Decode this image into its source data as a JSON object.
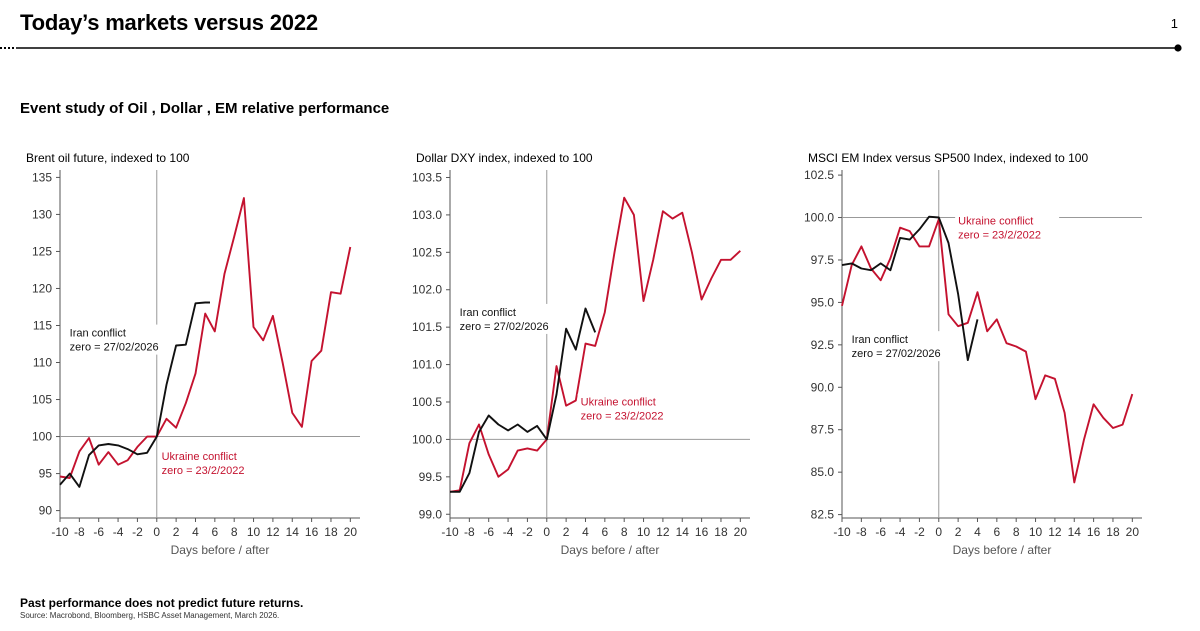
{
  "header": {
    "title": "Today’s markets versus 2022",
    "page_number": "1"
  },
  "subtitle": "Event study of Oil , Dollar , EM relative performance",
  "colors": {
    "iran": "#111111",
    "ukraine": "#c4122f",
    "ref_line": "#999999",
    "axis": "#555555"
  },
  "footer": {
    "disclaimer": "Past performance does not predict future returns.",
    "source": "Source: Macrobond, Bloomberg, HSBC Asset Management, March 2026."
  },
  "chart_data": [
    {
      "type": "line",
      "title": "Brent oil future, indexed to 100",
      "xlabel": "Days before / after",
      "ylabel": "",
      "xlim": [
        -10,
        21
      ],
      "ylim": [
        89,
        136
      ],
      "yticks": [
        90,
        95,
        100,
        105,
        110,
        115,
        120,
        125,
        130,
        135
      ],
      "ytick_labels": [
        "90",
        "95",
        "100",
        "105",
        "110",
        "115",
        "120",
        "125",
        "130",
        "135"
      ],
      "xticks": [
        -10,
        -8,
        -6,
        -4,
        -2,
        0,
        2,
        4,
        6,
        8,
        10,
        12,
        14,
        16,
        18,
        20
      ],
      "xtick_labels": [
        "-10",
        "-8",
        "-6",
        "-4",
        "-2",
        "0",
        "2",
        "4",
        "6",
        "8",
        "10",
        "12",
        "14",
        "16",
        "18",
        "20"
      ],
      "ref_y": 100,
      "ref_x": 0,
      "series": [
        {
          "name": "Iran conflict",
          "color_key": "iran",
          "x": [
            -10,
            -9,
            -8,
            -7,
            -6,
            -5,
            -4,
            -3,
            -2,
            -1,
            0,
            1,
            2,
            3,
            4,
            5,
            5.5
          ],
          "values": [
            93.5,
            95.0,
            93.2,
            97.5,
            98.8,
            99.0,
            98.8,
            98.3,
            97.6,
            97.8,
            100.0,
            107.0,
            112.3,
            112.4,
            118.0,
            118.1,
            118.1
          ],
          "label": [
            "Iran conflict",
            "zero = 27/02/2026"
          ]
        },
        {
          "name": "Ukraine conflict",
          "color_key": "ukraine",
          "x": [
            -10,
            -9,
            -8,
            -7,
            -6,
            -5,
            -4,
            -3,
            -2,
            -1,
            0,
            1,
            2,
            3,
            4,
            5,
            6,
            7,
            8,
            9,
            10,
            11,
            12,
            13,
            14,
            15,
            16,
            17,
            18,
            19,
            20
          ],
          "values": [
            94.6,
            94.4,
            98.0,
            99.8,
            96.2,
            97.9,
            96.2,
            96.8,
            98.6,
            100.0,
            100.0,
            102.4,
            101.2,
            104.5,
            108.5,
            116.6,
            114.2,
            122.0,
            127.0,
            132.2,
            114.8,
            113.0,
            116.3,
            110.0,
            103.2,
            101.3,
            110.2,
            111.6,
            119.5,
            119.3,
            125.6
          ],
          "label": [
            "Ukraine conflict",
            "zero = 23/2/2022"
          ]
        }
      ]
    },
    {
      "type": "line",
      "title": "Dollar DXY index, indexed to 100",
      "xlabel": "Days before / after",
      "ylabel": "",
      "xlim": [
        -10,
        21
      ],
      "ylim": [
        98.95,
        103.6
      ],
      "yticks": [
        99.0,
        99.5,
        100.0,
        100.5,
        101.0,
        101.5,
        102.0,
        102.5,
        103.0,
        103.5
      ],
      "ytick_labels": [
        "99.0",
        "99.5",
        "100.0",
        "100.5",
        "101.0",
        "101.5",
        "102.0",
        "102.5",
        "103.0",
        "103.5"
      ],
      "xticks": [
        -10,
        -8,
        -6,
        -4,
        -2,
        0,
        2,
        4,
        6,
        8,
        10,
        12,
        14,
        16,
        18,
        20
      ],
      "xtick_labels": [
        "-10",
        "-8",
        "-6",
        "-4",
        "-2",
        "0",
        "2",
        "4",
        "6",
        "8",
        "10",
        "12",
        "14",
        "16",
        "18",
        "20"
      ],
      "ref_y": 100,
      "ref_x": 0,
      "series": [
        {
          "name": "Iran conflict",
          "color_key": "iran",
          "x": [
            -10,
            -9,
            -8,
            -7,
            -6,
            -5,
            -4,
            -3,
            -2,
            -1,
            0,
            1,
            2,
            3,
            4,
            5
          ],
          "values": [
            99.3,
            99.3,
            99.55,
            100.1,
            100.32,
            100.2,
            100.12,
            100.2,
            100.1,
            100.18,
            100.0,
            100.6,
            101.48,
            101.2,
            101.75,
            101.43
          ],
          "label": [
            "Iran conflict",
            "zero = 27/02/2026"
          ]
        },
        {
          "name": "Ukraine conflict",
          "color_key": "ukraine",
          "x": [
            -10,
            -9,
            -8,
            -7,
            -6,
            -5,
            -4,
            -3,
            -2,
            -1,
            0,
            1,
            2,
            3,
            4,
            5,
            6,
            7,
            8,
            9,
            10,
            11,
            12,
            13,
            14,
            15,
            16,
            17,
            18,
            19,
            20
          ],
          "values": [
            99.3,
            99.32,
            99.95,
            100.2,
            99.8,
            99.5,
            99.6,
            99.85,
            99.88,
            99.85,
            100.0,
            100.98,
            100.45,
            100.52,
            101.28,
            101.25,
            101.7,
            102.5,
            103.23,
            103.0,
            101.85,
            102.4,
            103.05,
            102.95,
            103.03,
            102.5,
            101.87,
            102.15,
            102.4,
            102.4,
            102.52
          ],
          "label": [
            "Ukraine conflict",
            "zero = 23/2/2022"
          ]
        }
      ]
    },
    {
      "type": "line",
      "title": "MSCI EM Index versus SP500 Index, indexed to 100",
      "xlabel": "Days before / after",
      "ylabel": "",
      "xlim": [
        -10,
        21
      ],
      "ylim": [
        82.3,
        102.8
      ],
      "yticks": [
        82.5,
        85.0,
        87.5,
        90.0,
        92.5,
        95.0,
        97.5,
        100.0,
        102.5
      ],
      "ytick_labels": [
        "82.5",
        "85.0",
        "87.5",
        "90.0",
        "92.5",
        "95.0",
        "97.5",
        "100.0",
        "102.5"
      ],
      "xticks": [
        -10,
        -8,
        -6,
        -4,
        -2,
        0,
        2,
        4,
        6,
        8,
        10,
        12,
        14,
        16,
        18,
        20
      ],
      "xtick_labels": [
        "-10",
        "-8",
        "-6",
        "-4",
        "-2",
        "0",
        "2",
        "4",
        "6",
        "8",
        "10",
        "12",
        "14",
        "16",
        "18",
        "20"
      ],
      "ref_y": 100,
      "ref_x": 0,
      "series": [
        {
          "name": "Iran conflict",
          "color_key": "iran",
          "x": [
            -10,
            -9,
            -8,
            -7,
            -6,
            -5,
            -4,
            -3,
            -2,
            -1,
            0,
            1,
            2,
            3,
            4
          ],
          "values": [
            97.2,
            97.3,
            97.0,
            96.9,
            97.3,
            96.9,
            98.8,
            98.7,
            99.3,
            100.05,
            100.0,
            98.5,
            95.5,
            91.6,
            94.0
          ],
          "label": [
            "Iran conflict",
            "zero = 27/02/2026"
          ]
        },
        {
          "name": "Ukraine conflict",
          "color_key": "ukraine",
          "x": [
            -10,
            -9,
            -8,
            -7,
            -6,
            -5,
            -4,
            -3,
            -2,
            -1,
            0,
            1,
            2,
            3,
            4,
            5,
            6,
            7,
            8,
            9,
            10,
            11,
            12,
            13,
            14,
            15,
            16,
            17,
            18,
            19,
            20
          ],
          "values": [
            94.8,
            97.2,
            98.3,
            97.0,
            96.3,
            97.6,
            99.4,
            99.2,
            98.3,
            98.3,
            99.9,
            94.3,
            93.6,
            93.8,
            95.6,
            93.3,
            94.0,
            92.6,
            92.4,
            92.1,
            89.3,
            90.7,
            90.5,
            88.5,
            84.4,
            86.9,
            89.0,
            88.2,
            87.6,
            87.8,
            89.6
          ],
          "label": [
            "Ukraine conflict",
            "zero = 23/2/2022"
          ]
        }
      ]
    }
  ]
}
